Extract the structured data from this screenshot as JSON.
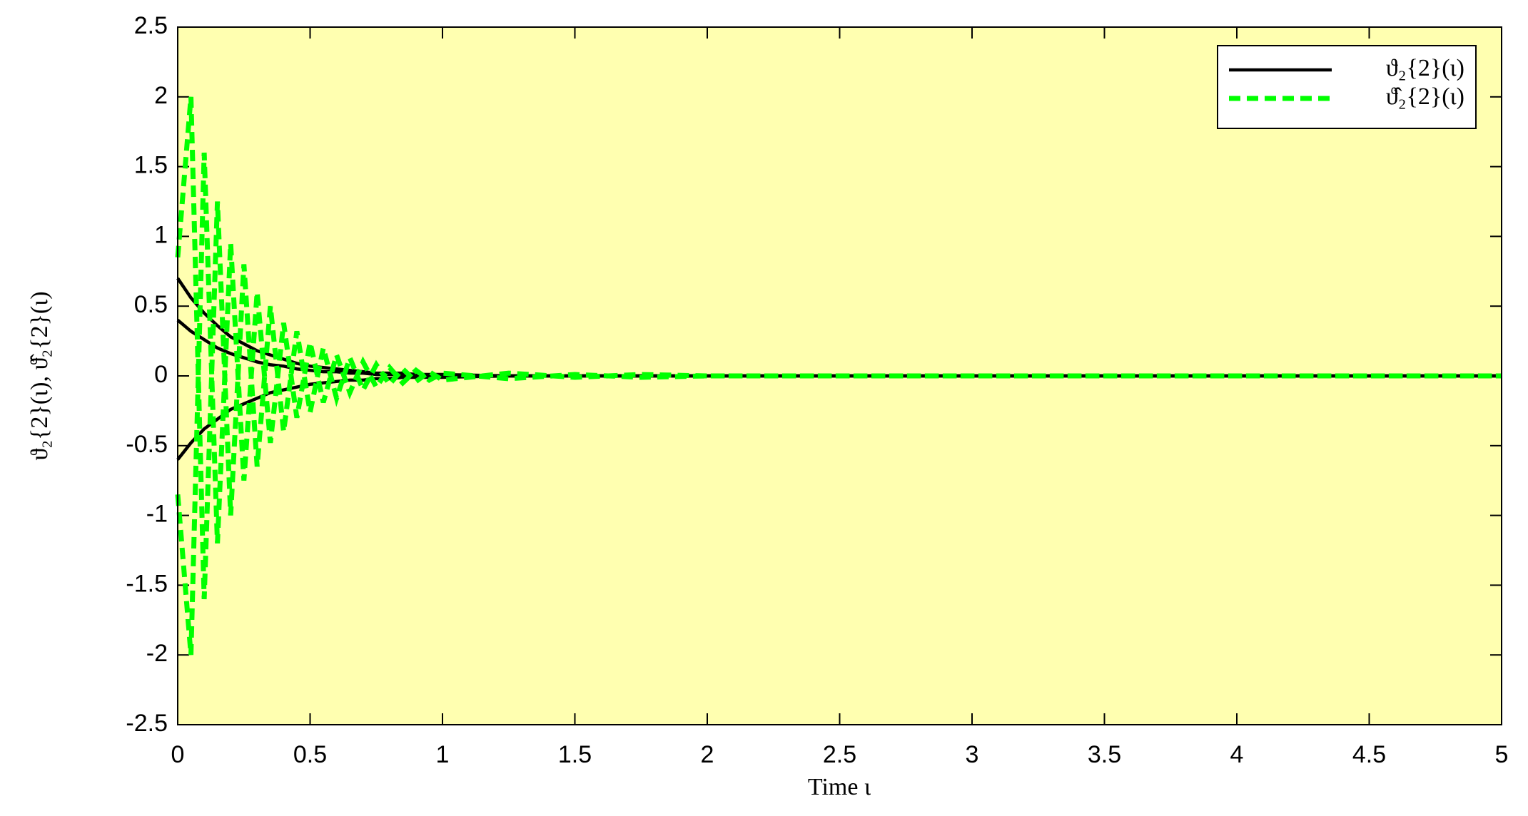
{
  "chart_data": {
    "type": "line",
    "x_label": "Time  ι",
    "y_label": "ϑ₂{2}(ι), ϑ̂₂{2}(ι)",
    "x": [
      0,
      0.05,
      0.1,
      0.15,
      0.2,
      0.25,
      0.3,
      0.35,
      0.4,
      0.45,
      0.5,
      0.55,
      0.6,
      0.65,
      0.7,
      0.75,
      0.8,
      0.85,
      0.9,
      0.95,
      1,
      1.25,
      1.5,
      1.75,
      2,
      2.25,
      2.5,
      2.75,
      3,
      3.25,
      3.5,
      3.75,
      4,
      4.25,
      4.5,
      4.75,
      5
    ],
    "series": [
      {
        "name": "ϑ₂{2}(ι)",
        "color": "#000000",
        "linestyle": "solid",
        "values": [
          0.7,
          0.56,
          0.45,
          0.36,
          0.28,
          0.23,
          0.18,
          0.15,
          0.12,
          0.09,
          0.07,
          0.06,
          0.05,
          0.04,
          0.03,
          0.02,
          0.02,
          0.02,
          0.01,
          0.01,
          0.01,
          0,
          0,
          0,
          0,
          0,
          0,
          0,
          0,
          0,
          0,
          0,
          0,
          0,
          0,
          0,
          0
        ]
      },
      {
        "name": "ϑ̂₂{2}(ι)",
        "color": "#00ff00",
        "linestyle": "dashed",
        "values": [
          0.85,
          2.0,
          -1.6,
          1.25,
          -1.0,
          0.8,
          -0.65,
          0.5,
          -0.4,
          0.32,
          -0.26,
          0.2,
          -0.16,
          0.13,
          -0.1,
          0.08,
          -0.06,
          0.05,
          -0.04,
          0.03,
          -0.03,
          0.02,
          -0.01,
          0.01,
          0,
          0,
          0,
          0,
          0,
          0,
          0,
          0,
          0,
          0,
          0,
          0,
          0
        ]
      },
      {
        "color": "#000000",
        "linestyle": "solid",
        "values": [
          0.4,
          0.32,
          0.26,
          0.2,
          0.16,
          0.13,
          0.1,
          0.08,
          0.07,
          0.05,
          0.04,
          0.03,
          0.03,
          0.02,
          0.02,
          0.01,
          0.01,
          0.01,
          0.01,
          0,
          0,
          0,
          0,
          0,
          0,
          0,
          0,
          0,
          0,
          0,
          0,
          0,
          0,
          0,
          0,
          0,
          0
        ]
      },
      {
        "color": "#000000",
        "linestyle": "solid",
        "values": [
          -0.6,
          -0.48,
          -0.38,
          -0.31,
          -0.24,
          -0.2,
          -0.16,
          -0.12,
          -0.1,
          -0.08,
          -0.06,
          -0.05,
          -0.04,
          -0.03,
          -0.03,
          -0.02,
          -0.02,
          -0.01,
          -0.01,
          -0.01,
          -0.01,
          0,
          0,
          0,
          0,
          0,
          0,
          0,
          0,
          0,
          0,
          0,
          0,
          0,
          0,
          0,
          0
        ]
      },
      {
        "color": "#00ff00",
        "linestyle": "dashed",
        "values": [
          -0.85,
          -2.0,
          1.6,
          -1.2,
          0.95,
          -0.75,
          0.6,
          -0.48,
          0.38,
          -0.3,
          0.24,
          -0.19,
          0.15,
          -0.12,
          0.1,
          -0.08,
          0.06,
          -0.05,
          0.04,
          -0.03,
          0.02,
          -0.02,
          0.01,
          -0.01,
          0,
          0,
          0,
          0,
          0,
          0,
          0,
          0,
          0,
          0,
          0,
          0,
          0
        ]
      }
    ],
    "xlim": [
      0,
      5
    ],
    "ylim": [
      -2.5,
      2.5
    ],
    "xticks": [
      0,
      0.5,
      1,
      1.5,
      2,
      2.5,
      3,
      3.5,
      4,
      4.5,
      5
    ],
    "yticks": [
      -2.5,
      -2,
      -1.5,
      -1,
      -0.5,
      0,
      0.5,
      1,
      1.5,
      2,
      2.5
    ],
    "plot_background": "#ffffb0",
    "legend": "upper right"
  }
}
